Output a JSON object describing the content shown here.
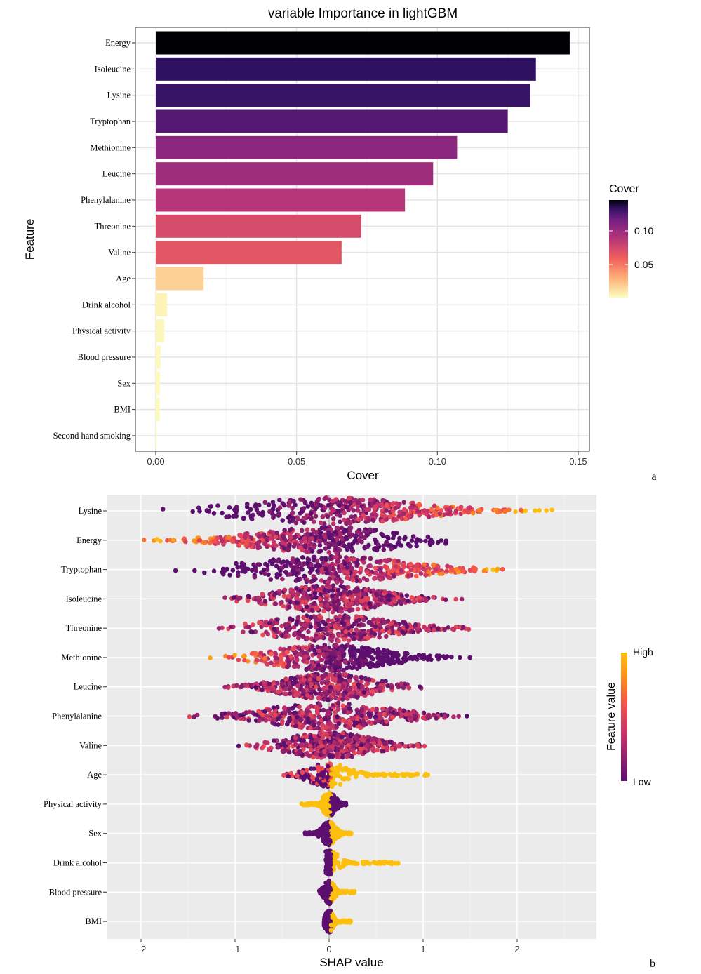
{
  "chart_data": [
    {
      "type": "bar",
      "orientation": "horizontal",
      "title": "variable Importance in lightGBM",
      "xlabel": "Cover",
      "ylabel": "Feature",
      "panel_label": "a",
      "xlim": [
        -0.007,
        0.154
      ],
      "xticks": [
        "0.00",
        "0.05",
        "0.10",
        "0.15"
      ],
      "grid": true,
      "categories": [
        "Energy",
        "Isoleucine",
        "Lysine",
        "Tryptophan",
        "Methionine",
        "Leucine",
        "Phenylalanine",
        "Threonine",
        "Valine",
        "Age",
        "Drink alcohol",
        "Physical activity",
        "Blood pressure",
        "Sex",
        "BMI",
        "Second hand smoking"
      ],
      "values": [
        0.147,
        0.135,
        0.133,
        0.125,
        0.107,
        0.0985,
        0.0885,
        0.073,
        0.066,
        0.017,
        0.004,
        0.003,
        0.0017,
        0.0015,
        0.0014,
        0.0003
      ],
      "legend": {
        "title": "Cover",
        "ticks": [
          "0.10",
          "0.05"
        ],
        "placement": "right",
        "colormap": "magma (reversed)"
      }
    },
    {
      "type": "scatter",
      "subtype": "beeswarm",
      "xlabel": "SHAP value",
      "panel_label": "b",
      "xlim": [
        -2.25,
        2.85
      ],
      "xticks": [
        "−2",
        "−1",
        "0",
        "1",
        "2"
      ],
      "grid": true,
      "features": [
        {
          "name": "Lysine",
          "min": -1.93,
          "max": 2.6,
          "high_side": "positive"
        },
        {
          "name": "Energy",
          "min": -2.15,
          "max": 1.67,
          "high_side": "negative"
        },
        {
          "name": "Tryptophan",
          "min": -1.75,
          "max": 2.27,
          "high_side": "positive"
        },
        {
          "name": "Isoleucine",
          "min": -1.27,
          "max": 1.48,
          "high_side": "mixed"
        },
        {
          "name": "Threonine",
          "min": -1.38,
          "max": 1.73,
          "high_side": "mixed"
        },
        {
          "name": "Methionine",
          "min": -1.34,
          "max": 1.55,
          "high_side": "negative"
        },
        {
          "name": "Leucine",
          "min": -1.25,
          "max": 1.1,
          "high_side": "mixed"
        },
        {
          "name": "Phenylalanine",
          "min": -1.51,
          "max": 1.68,
          "high_side": "mixed"
        },
        {
          "name": "Valine",
          "min": -1.02,
          "max": 1.17,
          "high_side": "mixed"
        },
        {
          "name": "Age",
          "min": -0.5,
          "max": 1.05,
          "high_side": "positive"
        },
        {
          "name": "Physical activity",
          "min": -0.33,
          "max": 0.18,
          "high_side": "negative"
        },
        {
          "name": "Sex",
          "min": -0.28,
          "max": 0.24,
          "high_side": "positive"
        },
        {
          "name": "Drink alcohol",
          "min": -0.05,
          "max": 0.74,
          "high_side": "positive"
        },
        {
          "name": "Blood pressure",
          "min": -0.12,
          "max": 0.27,
          "high_side": "positive"
        },
        {
          "name": "BMI",
          "min": -0.07,
          "max": 0.23,
          "high_side": "positive"
        }
      ],
      "legend": {
        "title": "Feature value",
        "high": "High",
        "low": "Low",
        "placement": "right",
        "colors": [
          "#5c0f6e",
          "#c2306b",
          "#f4524d",
          "#fb8c1a",
          "#fcbf0e"
        ]
      }
    }
  ]
}
